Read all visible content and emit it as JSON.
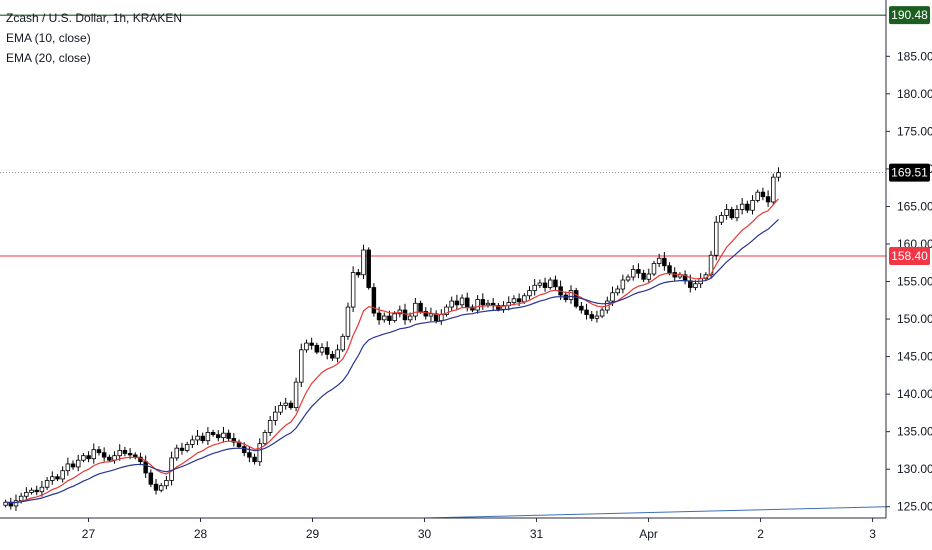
{
  "legend": {
    "title": "Zcash / U.S. Dollar, 1h, KRAKEN",
    "ema10": "EMA (10, close)",
    "ema20": "EMA (20, close)"
  },
  "colors": {
    "candle_up": "#ffffff",
    "candle_down": "#000000",
    "ema10": "#e53935",
    "ema20": "#283593",
    "resistance": "#f23645",
    "top_line": "#1b5e20",
    "trendline": "#3d6fb6",
    "price_tag": "#000000"
  },
  "chart_data": {
    "type": "candlestick",
    "symbol": "Zcash / U.S. Dollar",
    "interval": "1h",
    "exchange": "KRAKEN",
    "x_labels": [
      "27",
      "28",
      "29",
      "30",
      "31",
      "Apr",
      "2",
      "3"
    ],
    "x_label_positions_day": [
      1,
      2,
      3,
      4,
      5,
      6,
      7,
      8
    ],
    "y_ticks": [
      "125.00",
      "130.00",
      "135.00",
      "140.00",
      "145.00",
      "150.00",
      "155.00",
      "160.00",
      "165.00",
      "170.00",
      "175.00",
      "180.00",
      "185.00"
    ],
    "ylim": [
      123.5,
      192.5
    ],
    "xlim_day": [
      0.21,
      8.12
    ],
    "closes": [
      125.6,
      125.1,
      125.8,
      126.4,
      126.9,
      127.2,
      127.0,
      127.6,
      128.5,
      129.0,
      128.7,
      129.8,
      130.7,
      130.3,
      131.2,
      131.8,
      131.4,
      132.6,
      132.2,
      131.6,
      131.2,
      131.8,
      132.5,
      132.1,
      131.9,
      131.6,
      131.0,
      129.5,
      128.0,
      127.2,
      127.8,
      128.5,
      131.5,
      132.8,
      132.5,
      133.3,
      133.9,
      134.4,
      133.8,
      134.9,
      134.6,
      134.2,
      134.8,
      134.1,
      133.6,
      133.0,
      132.2,
      131.6,
      131.0,
      133.4,
      134.9,
      136.5,
      137.6,
      138.5,
      138.8,
      138.2,
      141.6,
      145.9,
      146.8,
      146.5,
      145.6,
      146.2,
      145.3,
      144.8,
      145.9,
      147.7,
      151.6,
      156.2,
      155.9,
      159.2,
      154.2,
      150.8,
      149.9,
      150.4,
      149.8,
      150.7,
      151.2,
      149.9,
      150.4,
      152.1,
      151.0,
      150.4,
      150.7,
      149.8,
      150.6,
      151.6,
      152.4,
      151.9,
      152.8,
      151.6,
      151.2,
      152.6,
      151.9,
      152.1,
      151.8,
      151.3,
      151.8,
      152.2,
      152.7,
      152.3,
      153.1,
      153.8,
      154.5,
      154.8,
      154.2,
      155.2,
      154.3,
      153.2,
      152.6,
      153.8,
      151.7,
      151.2,
      150.6,
      150.1,
      150.4,
      151.2,
      152.4,
      153.5,
      154.0,
      155.2,
      155.6,
      156.6,
      156.1,
      155.3,
      156.0,
      157.4,
      158.1,
      157.1,
      156.2,
      155.6,
      155.9,
      155.1,
      154.2,
      154.7,
      155.4,
      155.9,
      158.5,
      162.9,
      163.8,
      164.6,
      163.5,
      164.6,
      165.3,
      164.5,
      165.8,
      166.9,
      166.3,
      165.6,
      168.9,
      169.5
    ],
    "series": [
      {
        "name": "EMA (10, close)",
        "role": "ema10"
      },
      {
        "name": "EMA (20, close)",
        "role": "ema20"
      }
    ],
    "price_tags": [
      "190.48",
      "169.51",
      "158.40"
    ],
    "horizontal_lines": [
      {
        "price": 190.48,
        "role": "top_line"
      },
      {
        "price": 169.51,
        "role": "last_price_dotted"
      },
      {
        "price": 158.4,
        "role": "resistance"
      }
    ],
    "trendline": {
      "from": {
        "day": 4.0,
        "price": 123.5
      },
      "to": {
        "day": 8.12,
        "price": 125.0
      }
    },
    "grid": false
  }
}
